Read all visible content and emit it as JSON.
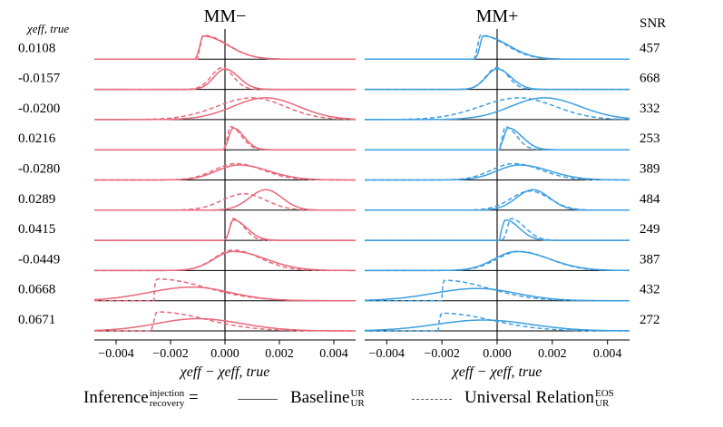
{
  "chart_data": {
    "type": "ridgeline-kde",
    "panels": [
      {
        "title": "MM−",
        "color": "#e8687a"
      },
      {
        "title": "MM+",
        "color": "#3d9fe0"
      }
    ],
    "row_label_header": "χeff, true",
    "right_label_header": "SNR",
    "rows": [
      {
        "chi_eff_true": "0.0108",
        "snr": "457"
      },
      {
        "chi_eff_true": "-0.0157",
        "snr": "668"
      },
      {
        "chi_eff_true": "-0.0200",
        "snr": "332"
      },
      {
        "chi_eff_true": "0.0216",
        "snr": "253"
      },
      {
        "chi_eff_true": "-0.0280",
        "snr": "389"
      },
      {
        "chi_eff_true": "0.0289",
        "snr": "484"
      },
      {
        "chi_eff_true": "0.0415",
        "snr": "249"
      },
      {
        "chi_eff_true": "-0.0449",
        "snr": "387"
      },
      {
        "chi_eff_true": "0.0668",
        "snr": "432"
      },
      {
        "chi_eff_true": "0.0671",
        "snr": "272"
      }
    ],
    "xlim": [
      -0.0048,
      0.0048
    ],
    "xticks": [
      "−0.004",
      "−0.002",
      "0.000",
      "0.002",
      "0.004"
    ],
    "xtick_values": [
      -0.004,
      -0.002,
      0.0,
      0.002,
      0.004
    ],
    "xlabel_main": "χeff − χeff, true",
    "series_style": {
      "Baseline": "solid",
      "Universal Relation": "dashed"
    },
    "kde_params": {
      "note": "approximate posterior shapes per row: [center, left_width, right_width, hard_left_cutoff, peak_height] in data units",
      "mm_minus": {
        "solid": [
          [
            -0.0008,
            0.00012,
            0.0009,
            -0.00105,
            0.85
          ],
          [
            0.0,
            0.0004,
            0.0005,
            null,
            0.75
          ],
          [
            0.0015,
            0.0012,
            0.0012,
            null,
            0.8
          ],
          [
            0.0003,
            0.00015,
            0.0004,
            0.0,
            0.8
          ],
          [
            0.0005,
            0.0008,
            0.0011,
            null,
            0.55
          ],
          [
            0.0015,
            0.0006,
            0.0006,
            null,
            0.75
          ],
          [
            0.0003,
            0.00012,
            0.0005,
            0.0,
            0.75
          ],
          [
            0.0003,
            0.0007,
            0.0012,
            null,
            0.7
          ],
          [
            -0.0012,
            0.0016,
            0.0014,
            null,
            0.5
          ],
          [
            -0.001,
            0.0015,
            0.0016,
            null,
            0.45
          ]
        ],
        "dashed": [
          [
            -0.0008,
            0.0001,
            0.0009,
            -0.001,
            0.88
          ],
          [
            -0.0001,
            0.0004,
            0.0004,
            null,
            0.8
          ],
          [
            0.001,
            0.0013,
            0.0012,
            null,
            0.8
          ],
          [
            0.0002,
            0.0001,
            0.0004,
            -0.0001,
            0.85
          ],
          [
            0.0004,
            0.0008,
            0.001,
            null,
            0.6
          ],
          [
            0.0007,
            0.0008,
            0.0008,
            null,
            0.6
          ],
          [
            0.0003,
            0.00012,
            0.0004,
            0.0,
            0.8
          ],
          [
            0.0003,
            0.0007,
            0.001,
            null,
            0.75
          ],
          [
            -0.0025,
            0.0001,
            0.0018,
            -0.0026,
            0.8
          ],
          [
            -0.0025,
            0.0001,
            0.0018,
            -0.0027,
            0.7
          ]
        ]
      },
      "mm_plus": {
        "solid": [
          [
            -0.0005,
            0.00012,
            0.0009,
            -0.0008,
            0.85
          ],
          [
            0.0,
            0.0004,
            0.0005,
            null,
            0.75
          ],
          [
            0.0017,
            0.0012,
            0.0013,
            null,
            0.8
          ],
          [
            0.0004,
            0.00015,
            0.0005,
            0.0001,
            0.8
          ],
          [
            0.0008,
            0.0008,
            0.0011,
            null,
            0.55
          ],
          [
            0.0013,
            0.0006,
            0.0006,
            null,
            0.75
          ],
          [
            0.0003,
            0.00012,
            0.0005,
            0.0001,
            0.75
          ],
          [
            0.0007,
            0.0008,
            0.0012,
            null,
            0.7
          ],
          [
            -0.0007,
            0.0016,
            0.0014,
            null,
            0.45
          ],
          [
            -0.0005,
            0.0017,
            0.0017,
            null,
            0.4
          ]
        ],
        "dashed": [
          [
            -0.0006,
            0.0001,
            0.0009,
            -0.0008,
            0.88
          ],
          [
            0.0,
            0.0004,
            0.0004,
            null,
            0.8
          ],
          [
            0.0008,
            0.0014,
            0.0013,
            null,
            0.8
          ],
          [
            0.0003,
            0.0001,
            0.0004,
            0.0001,
            0.85
          ],
          [
            0.0006,
            0.0008,
            0.001,
            null,
            0.6
          ],
          [
            0.0012,
            0.0007,
            0.0007,
            null,
            0.7
          ],
          [
            0.0005,
            0.00012,
            0.0005,
            0.0002,
            0.8
          ],
          [
            0.0008,
            0.0008,
            0.0011,
            null,
            0.7
          ],
          [
            -0.0019,
            0.0001,
            0.0016,
            -0.002,
            0.75
          ],
          [
            -0.002,
            0.0001,
            0.0018,
            -0.0021,
            0.65
          ]
        ]
      }
    }
  },
  "legend": {
    "prefix": "Inference",
    "prefix_sup": "injection",
    "prefix_sub": "recovery",
    "equals": "=",
    "baseline_label": "Baseline",
    "baseline_sup": "UR",
    "baseline_sub": "UR",
    "ur_label": "Universal Relation",
    "ur_sup": "EOS",
    "ur_sub": "UR"
  }
}
